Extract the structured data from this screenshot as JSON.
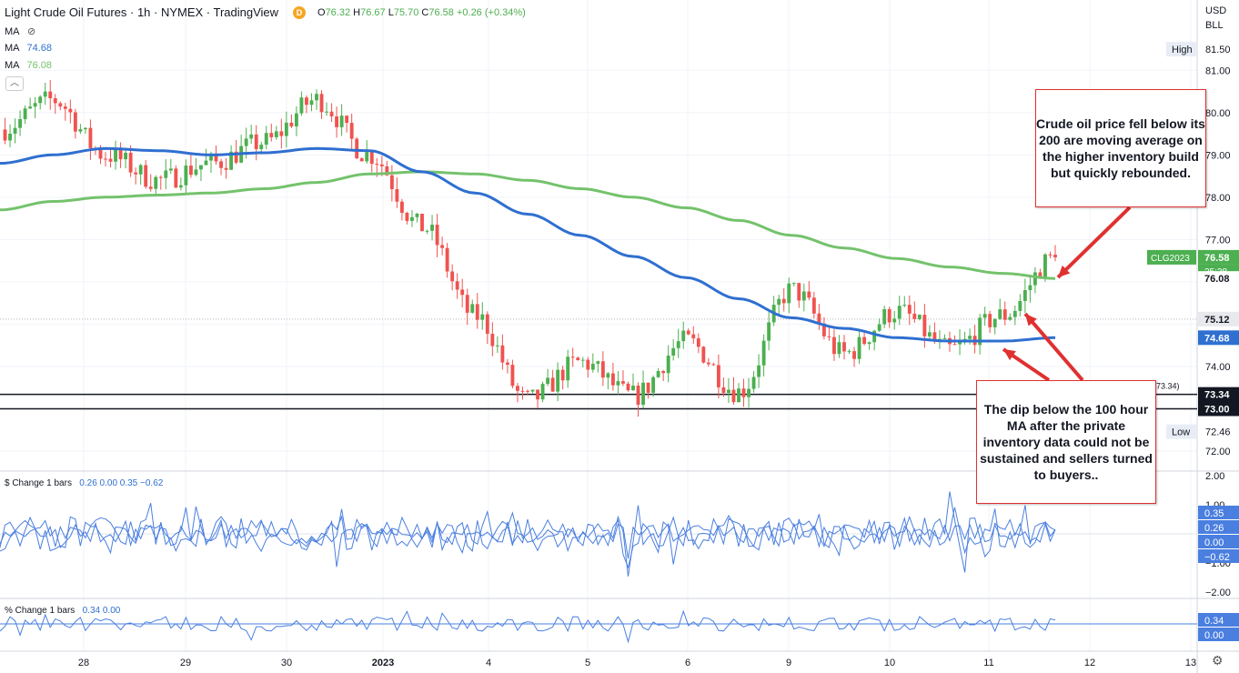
{
  "header": {
    "title": "Light Crude Oil Futures · 1h · NYMEX · TradingView",
    "delayed_badge": "D",
    "ohlc": {
      "o_label": "O",
      "o": "76.32",
      "h_label": "H",
      "h": "76.67",
      "l_label": "L",
      "l": "75.70",
      "c_label": "C",
      "c": "76.58",
      "change": "+0.26 (+0.34%)"
    },
    "currency": "USD",
    "unit": "BLL",
    "ma_rows": [
      {
        "label": "MA",
        "value": "",
        "icon": "eye-off-icon"
      },
      {
        "label": "MA",
        "value": "74.68"
      },
      {
        "label": "MA",
        "value": "76.08"
      }
    ],
    "collapse_icon": "chevron-up-icon"
  },
  "price_axis": {
    "ticks": [
      "81.50",
      "81.00",
      "80.00",
      "79.00",
      "78.00",
      "77.00",
      "74.00",
      "72.00"
    ],
    "high_label": "High",
    "high_value": "81.50",
    "low_label": "Low",
    "low_value": "72.46",
    "symbol_label": "CLG2023",
    "last_price": "76.58",
    "countdown": "25:28",
    "ma200_value": "76.08",
    "ma100_value": "74.68",
    "line_75_12": "75.12",
    "support_1": "73.34",
    "support_2": "73.00",
    "hline_tag": "(73.34)"
  },
  "time_axis": {
    "labels": [
      "28",
      "29",
      "30",
      "2023",
      "4",
      "5",
      "6",
      "9",
      "10",
      "11",
      "12",
      "13"
    ]
  },
  "indicator1": {
    "title": "$ Change 1 bars",
    "values": "0.26 0.00 0.35 −0.62",
    "ticks": [
      "2.00",
      "1.00",
      "−1.00",
      "−2.00"
    ],
    "tags": [
      "0.35",
      "0.26",
      "0.00",
      "−0.62"
    ]
  },
  "indicator2": {
    "title": "% Change 1 bars",
    "values": "0.34 0.00",
    "tags": [
      "0.34",
      "0.00"
    ]
  },
  "annotations": {
    "top": "Crude oil price fell below its 200 are moving average on the higher inventory build but quickly rebounded.",
    "bottom": "The dip below the 100 hour MA after the private inventory data could not be sustained and sellers turned to buyers.."
  },
  "footer": {
    "settings_icon": "gear-icon"
  },
  "colors": {
    "up": "#4caf50",
    "down": "#ef5350",
    "ma100": "#2f6fd0",
    "ma200": "#74c26c",
    "change_line": "#4a7fe0",
    "annotation_border": "#e03030",
    "axis_text": "#131722"
  },
  "chart_data": {
    "type": "candlestick",
    "title": "Light Crude Oil Futures · 1h · NYMEX",
    "x_axis_labels": [
      "28",
      "29",
      "30",
      "2023",
      "4",
      "5",
      "6",
      "9",
      "10",
      "11",
      "12",
      "13"
    ],
    "ylim": [
      72.0,
      81.8
    ],
    "series": [
      {
        "name": "MA",
        "points": [
          [
            0,
            78.8
          ],
          [
            0.5,
            79.0
          ],
          [
            1,
            79.15
          ],
          [
            1.5,
            79.1
          ],
          [
            2,
            79.0
          ],
          [
            2.5,
            79.05
          ],
          [
            3,
            79.15
          ],
          [
            3.5,
            79.1
          ],
          [
            4,
            78.6
          ],
          [
            4.5,
            78.1
          ],
          [
            5,
            77.6
          ],
          [
            5.5,
            77.1
          ],
          [
            6,
            76.6
          ],
          [
            6.5,
            76.1
          ],
          [
            7,
            75.6
          ],
          [
            7.5,
            75.15
          ],
          [
            8,
            74.9
          ],
          [
            8.5,
            74.68
          ],
          [
            9,
            74.6
          ],
          [
            9.5,
            74.6
          ],
          [
            10,
            74.68
          ]
        ]
      },
      {
        "name": "MA",
        "points": [
          [
            0,
            77.7
          ],
          [
            0.5,
            77.9
          ],
          [
            1,
            78.0
          ],
          [
            1.5,
            78.05
          ],
          [
            2,
            78.1
          ],
          [
            2.5,
            78.2
          ],
          [
            3,
            78.35
          ],
          [
            3.5,
            78.55
          ],
          [
            4,
            78.6
          ],
          [
            4.5,
            78.55
          ],
          [
            5,
            78.4
          ],
          [
            5.5,
            78.2
          ],
          [
            6,
            78.0
          ],
          [
            6.5,
            77.75
          ],
          [
            7,
            77.45
          ],
          [
            7.5,
            77.1
          ],
          [
            8,
            76.8
          ],
          [
            8.5,
            76.55
          ],
          [
            9,
            76.35
          ],
          [
            9.5,
            76.2
          ],
          [
            10,
            76.08
          ]
        ]
      }
    ],
    "candles_summary": {
      "start_close": 79.6,
      "key_closes": [
        [
          0,
          79.6
        ],
        [
          0.5,
          80.3
        ],
        [
          1,
          79.0
        ],
        [
          1.5,
          78.4
        ],
        [
          2,
          78.8
        ],
        [
          2.5,
          79.3
        ],
        [
          3,
          80.3
        ],
        [
          3.5,
          79.0
        ],
        [
          4,
          77.3
        ],
        [
          4.5,
          75.2
        ],
        [
          5,
          73.2
        ],
        [
          5.5,
          74.1
        ],
        [
          6,
          73.3
        ],
        [
          6.5,
          74.6
        ],
        [
          7,
          73.4
        ],
        [
          7.5,
          75.8
        ],
        [
          8,
          74.3
        ],
        [
          8.5,
          75.3
        ],
        [
          9,
          74.4
        ],
        [
          9.5,
          75.2
        ],
        [
          10,
          76.58
        ]
      ]
    },
    "horizontal_lines": [
      73.34,
      73.0,
      75.12
    ]
  }
}
